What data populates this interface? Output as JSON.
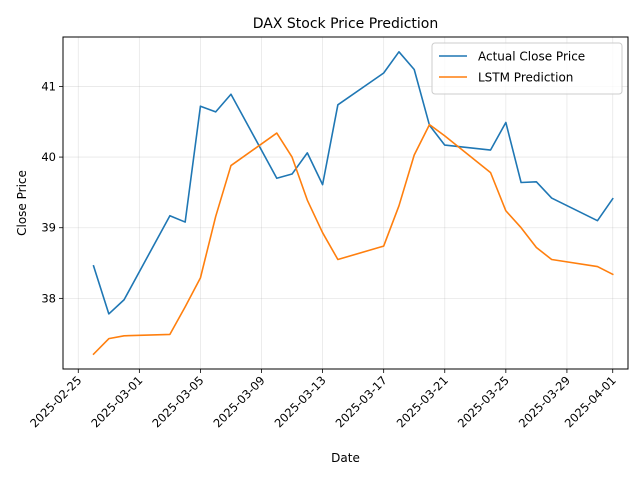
{
  "chart_data": {
    "type": "line",
    "title": "DAX Stock Price Prediction",
    "xlabel": "Date",
    "ylabel": "Close Price",
    "xlim": [
      "2025-02-24",
      "2025-04-02"
    ],
    "ylim": [
      37.0,
      41.7
    ],
    "x_ticks": [
      "2025-02-25",
      "2025-03-01",
      "2025-03-05",
      "2025-03-09",
      "2025-03-13",
      "2025-03-17",
      "2025-03-21",
      "2025-03-25",
      "2025-03-29",
      "2025-04-01"
    ],
    "y_ticks": [
      "38",
      "39",
      "40",
      "41"
    ],
    "grid": true,
    "legend_position": "top-right",
    "series": [
      {
        "name": "Actual Close Price",
        "color": "#1f77b4",
        "points": [
          [
            "2025-02-26",
            38.46
          ],
          [
            "2025-02-27",
            37.78
          ],
          [
            "2025-02-28",
            37.98
          ],
          [
            "2025-03-03",
            39.17
          ],
          [
            "2025-03-04",
            39.08
          ],
          [
            "2025-03-05",
            40.72
          ],
          [
            "2025-03-06",
            40.64
          ],
          [
            "2025-03-07",
            40.89
          ],
          [
            "2025-03-10",
            39.7
          ],
          [
            "2025-03-11",
            39.76
          ],
          [
            "2025-03-12",
            40.06
          ],
          [
            "2025-03-13",
            39.61
          ],
          [
            "2025-03-14",
            40.74
          ],
          [
            "2025-03-17",
            41.19
          ],
          [
            "2025-03-18",
            41.49
          ],
          [
            "2025-03-19",
            41.24
          ],
          [
            "2025-03-20",
            40.45
          ],
          [
            "2025-03-21",
            40.17
          ],
          [
            "2025-03-24",
            40.1
          ],
          [
            "2025-03-25",
            40.49
          ],
          [
            "2025-03-26",
            39.64
          ],
          [
            "2025-03-27",
            39.65
          ],
          [
            "2025-03-28",
            39.42
          ],
          [
            "2025-03-31",
            39.1
          ],
          [
            "2025-04-01",
            39.41
          ]
        ]
      },
      {
        "name": "LSTM Prediction",
        "color": "#ff7f0e",
        "points": [
          [
            "2025-02-26",
            37.21
          ],
          [
            "2025-02-27",
            37.43
          ],
          [
            "2025-02-28",
            37.47
          ],
          [
            "2025-03-03",
            37.49
          ],
          [
            "2025-03-04",
            37.88
          ],
          [
            "2025-03-05",
            38.29
          ],
          [
            "2025-03-06",
            39.16
          ],
          [
            "2025-03-07",
            39.88
          ],
          [
            "2025-03-10",
            40.34
          ],
          [
            "2025-03-11",
            40.0
          ],
          [
            "2025-03-12",
            39.39
          ],
          [
            "2025-03-13",
            38.93
          ],
          [
            "2025-03-14",
            38.55
          ],
          [
            "2025-03-17",
            38.74
          ],
          [
            "2025-03-18",
            39.31
          ],
          [
            "2025-03-19",
            40.03
          ],
          [
            "2025-03-20",
            40.46
          ],
          [
            "2025-03-21",
            40.3
          ],
          [
            "2025-03-24",
            39.78
          ],
          [
            "2025-03-25",
            39.24
          ],
          [
            "2025-03-26",
            39.0
          ],
          [
            "2025-03-27",
            38.72
          ],
          [
            "2025-03-28",
            38.55
          ],
          [
            "2025-03-31",
            38.45
          ],
          [
            "2025-04-01",
            38.34
          ]
        ]
      }
    ]
  }
}
